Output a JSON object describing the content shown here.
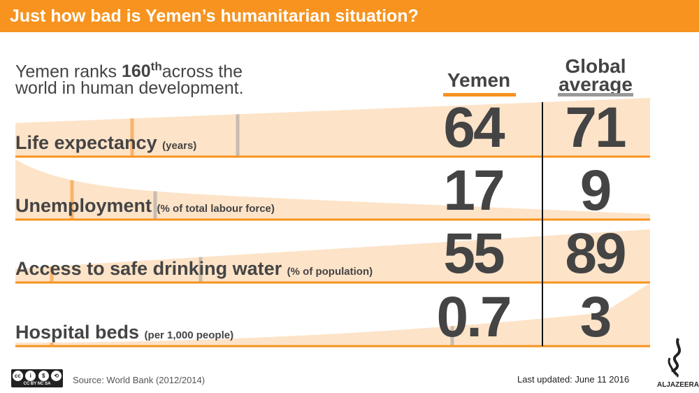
{
  "header": {
    "title": "Just how bad is Yemen’s humanitarian situation?"
  },
  "intro": {
    "before": "Yemen ranks ",
    "rank": "160",
    "suffix": "th",
    "after": "across the",
    "line2": "world in human development."
  },
  "columns": {
    "yemen": "Yemen",
    "global_line1": "Global",
    "global_line2": "average"
  },
  "colors": {
    "accent": "#f7931e",
    "area": "#fde3c8",
    "yemen_marker": "#f9b46a",
    "global_marker": "#c8bcb0"
  },
  "chart_data": {
    "type": "table",
    "columns": [
      "Yemen",
      "Global average"
    ],
    "rows": [
      {
        "label": "Life expectancy",
        "unit": "(years)",
        "yemen": "64",
        "global": "71"
      },
      {
        "label": "Unemployment",
        "unit": "(% of total labour force)",
        "yemen": "17",
        "global": "9"
      },
      {
        "label": "Access to safe drinking water",
        "unit": "(% of population)",
        "yemen": "55",
        "global": "89"
      },
      {
        "label": "Hospital beds",
        "unit": "(per 1,000 people)",
        "yemen": "0.7",
        "global": "3"
      }
    ]
  },
  "footer": {
    "license": "CC BY NC SA",
    "license_parts": [
      "cc",
      "i",
      "$",
      "⟲"
    ],
    "source": "Source: World Bank (2012/2014)",
    "updated": "Last updated: June 11 2016",
    "logo": "ALJAZEERA"
  }
}
